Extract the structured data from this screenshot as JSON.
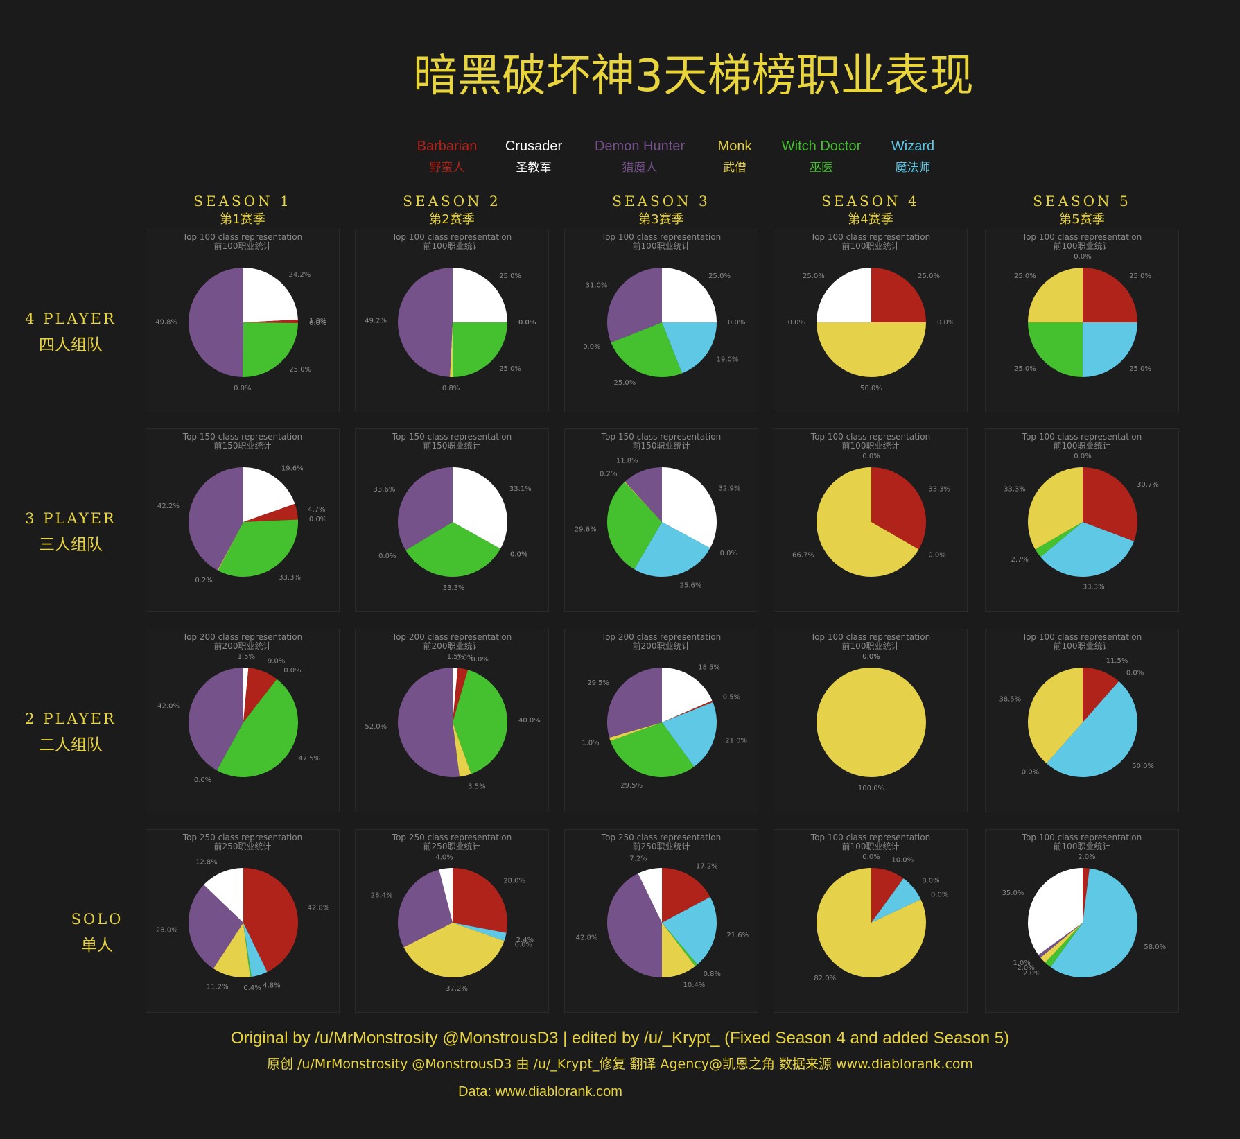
{
  "title": "暗黑破坏神3天梯榜职业表现",
  "legend": [
    {
      "en": "Barbarian",
      "zh": "野蛮人",
      "color": "#b0231a"
    },
    {
      "en": "Crusader",
      "zh": "圣教军",
      "color": "#ffffff"
    },
    {
      "en": "Demon Hunter",
      "zh": "猎魔人",
      "color": "#76528b"
    },
    {
      "en": "Monk",
      "zh": "武僧",
      "color": "#e5d24a"
    },
    {
      "en": "Witch Doctor",
      "zh": "巫医",
      "color": "#45c130"
    },
    {
      "en": "Wizard",
      "zh": "魔法师",
      "color": "#5ec8e5"
    }
  ],
  "seasons": [
    {
      "en": "SEASON 1",
      "zh": "第1赛季"
    },
    {
      "en": "SEASON 2",
      "zh": "第2赛季"
    },
    {
      "en": "SEASON 3",
      "zh": "第3赛季"
    },
    {
      "en": "SEASON 4",
      "zh": "第4赛季"
    },
    {
      "en": "SEASON 5",
      "zh": "第5赛季"
    }
  ],
  "rows": [
    {
      "en": "4 PLAYER",
      "zh": "四人组队"
    },
    {
      "en": "3 PLAYER",
      "zh": "三人组队"
    },
    {
      "en": "2 PLAYER",
      "zh": "二人组队"
    },
    {
      "en": "SOLO",
      "zh": "单人"
    }
  ],
  "chart_data": [
    {
      "type": "pie",
      "title": "Top 100 class representation",
      "subtitle": "前100职业统计",
      "categories": [
        "Crusader",
        "Barbarian",
        "Wizard",
        "Witch Doctor",
        "Monk",
        "Demon Hunter"
      ],
      "values": [
        24.2,
        1.0,
        0.0,
        25.0,
        0.0,
        49.8
      ]
    },
    {
      "type": "pie",
      "title": "Top 100 class representation",
      "subtitle": "前100职业统计",
      "categories": [
        "Crusader",
        "Barbarian",
        "Wizard",
        "Witch Doctor",
        "Monk",
        "Demon Hunter"
      ],
      "values": [
        25.0,
        0.0,
        0.0,
        25.0,
        0.8,
        49.2
      ]
    },
    {
      "type": "pie",
      "title": "Top 100 class representation",
      "subtitle": "前100职业统计",
      "categories": [
        "Crusader",
        "Barbarian",
        "Wizard",
        "Witch Doctor",
        "Monk",
        "Demon Hunter"
      ],
      "values": [
        25.0,
        0.0,
        19.0,
        25.0,
        0.0,
        31.0
      ]
    },
    {
      "type": "pie",
      "title": "Top 100 class representation",
      "subtitle": "前100职业统计",
      "categories": [
        "Barbarian",
        "Wizard",
        "Monk",
        "Witch Doctor",
        "Crusader"
      ],
      "values": [
        25.0,
        0.0,
        50.0,
        0.0,
        25.0
      ]
    },
    {
      "type": "pie",
      "title": "Top 100 class representation",
      "subtitle": "前100职业统计",
      "categories": [
        "Barbarian",
        "Wizard",
        "Witch Doctor",
        "Monk",
        "Demon Hunter"
      ],
      "values": [
        25.0,
        25.0,
        25.0,
        25.0,
        0.0
      ]
    },
    {
      "type": "pie",
      "title": "Top 150 class representation",
      "subtitle": "前150职业统计",
      "categories": [
        "Crusader",
        "Barbarian",
        "Wizard",
        "Witch Doctor",
        "Monk",
        "Demon Hunter"
      ],
      "values": [
        19.6,
        4.7,
        0.0,
        33.3,
        0.2,
        42.2
      ]
    },
    {
      "type": "pie",
      "title": "Top 150 class representation",
      "subtitle": "前150职业统计",
      "categories": [
        "Crusader",
        "Barbarian",
        "Wizard",
        "Witch Doctor",
        "Monk",
        "Demon Hunter"
      ],
      "values": [
        33.1,
        0.0,
        0.0,
        33.3,
        0.0,
        33.6
      ]
    },
    {
      "type": "pie",
      "title": "Top 150 class representation",
      "subtitle": "前150职业统计",
      "categories": [
        "Crusader",
        "Barbarian",
        "Wizard",
        "Witch Doctor",
        "Monk",
        "Demon Hunter"
      ],
      "values": [
        32.9,
        0.0,
        25.6,
        29.6,
        0.2,
        11.8
      ]
    },
    {
      "type": "pie",
      "title": "Top 100 class representation",
      "subtitle": "前100职业统计",
      "categories": [
        "Barbarian",
        "Wizard",
        "Monk",
        "Crusader"
      ],
      "values": [
        33.3,
        0.0,
        66.7,
        0.0
      ]
    },
    {
      "type": "pie",
      "title": "Top 100 class representation",
      "subtitle": "前100职业统计",
      "categories": [
        "Barbarian",
        "Wizard",
        "Witch Doctor",
        "Monk",
        "Demon Hunter"
      ],
      "values": [
        30.7,
        33.3,
        2.7,
        33.3,
        0.0
      ]
    },
    {
      "type": "pie",
      "title": "Top 200 class representation",
      "subtitle": "前200职业统计",
      "categories": [
        "Crusader",
        "Barbarian",
        "Wizard",
        "Witch Doctor",
        "Monk",
        "Demon Hunter"
      ],
      "values": [
        1.5,
        9.0,
        0.0,
        47.5,
        0.0,
        42.0
      ]
    },
    {
      "type": "pie",
      "title": "Top 200 class representation",
      "subtitle": "前200职业统计",
      "categories": [
        "Crusader",
        "Barbarian",
        "Wizard",
        "Witch Doctor",
        "Monk",
        "Demon Hunter"
      ],
      "values": [
        1.5,
        3.0,
        0.0,
        40.0,
        3.5,
        52.0
      ]
    },
    {
      "type": "pie",
      "title": "Top 200 class representation",
      "subtitle": "前200职业统计",
      "categories": [
        "Crusader",
        "Barbarian",
        "Wizard",
        "Witch Doctor",
        "Monk",
        "Demon Hunter"
      ],
      "values": [
        18.5,
        0.5,
        21.0,
        29.5,
        1.0,
        29.5
      ]
    },
    {
      "type": "pie",
      "title": "Top 100 class representation",
      "subtitle": "前100职业统计",
      "categories": [
        "Barbarian",
        "Wizard",
        "Monk"
      ],
      "values": [
        0.0,
        0.0,
        100.0
      ]
    },
    {
      "type": "pie",
      "title": "Top 100 class representation",
      "subtitle": "前100职业统计",
      "categories": [
        "Barbarian",
        "Crusader",
        "Wizard",
        "Demon Hunter",
        "Monk"
      ],
      "values": [
        11.5,
        0.0,
        50.0,
        0.0,
        38.5
      ]
    },
    {
      "type": "pie",
      "title": "Top 250 class representation",
      "subtitle": "前250职业统计",
      "categories": [
        "Barbarian",
        "Wizard",
        "Witch Doctor",
        "Monk",
        "Demon Hunter",
        "Crusader"
      ],
      "values": [
        42.8,
        4.8,
        0.4,
        11.2,
        28.0,
        12.8
      ]
    },
    {
      "type": "pie",
      "title": "Top 250 class representation",
      "subtitle": "前250职业统计",
      "categories": [
        "Barbarian",
        "Wizard",
        "Witch Doctor",
        "Monk",
        "Demon Hunter",
        "Crusader"
      ],
      "values": [
        28.0,
        2.4,
        0.0,
        37.2,
        28.4,
        4.0
      ]
    },
    {
      "type": "pie",
      "title": "Top 250 class representation",
      "subtitle": "前250职业统计",
      "categories": [
        "Barbarian",
        "Wizard",
        "Witch Doctor",
        "Monk",
        "Demon Hunter",
        "Crusader"
      ],
      "values": [
        17.2,
        21.6,
        0.8,
        10.4,
        42.8,
        7.2
      ]
    },
    {
      "type": "pie",
      "title": "Top 100 class representation",
      "subtitle": "前100职业统计",
      "categories": [
        "Barbarian",
        "Wizard",
        "Crusader",
        "Monk",
        "Demon Hunter"
      ],
      "values": [
        10.0,
        8.0,
        0.0,
        82.0,
        0.0
      ]
    },
    {
      "type": "pie",
      "title": "Top 100 class representation",
      "subtitle": "前100职业统计",
      "categories": [
        "Barbarian",
        "Wizard",
        "Witch Doctor",
        "Monk",
        "Demon Hunter",
        "Crusader"
      ],
      "values": [
        2.0,
        58.0,
        2.0,
        2.0,
        1.0,
        35.0
      ]
    }
  ],
  "credits": {
    "line1": "Original by /u/MrMonstrosity @MonstrousD3 | edited by /u/_Krypt_ (Fixed Season 4 and added Season 5)",
    "line2": "原创 /u/MrMonstrosity @MonstrousD3 由 /u/_Krypt_修复   翻译 Agency@凯恩之角  数据来源 www.diablorank.com",
    "line3": "Data: www.diablorank.com"
  }
}
